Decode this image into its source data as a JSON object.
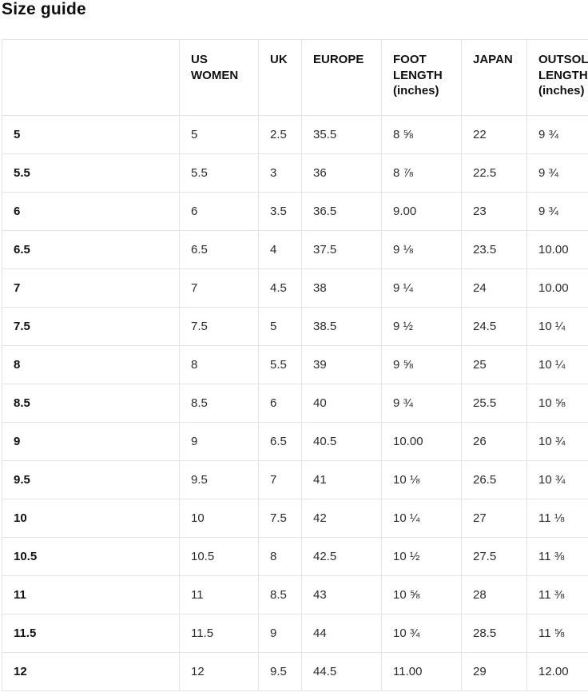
{
  "page": {
    "title": "Size guide"
  },
  "colors": {
    "border": "#e4e4e4",
    "heading_text": "#111111",
    "body_text": "#2b2b2b",
    "background": "#ffffff"
  },
  "table": {
    "columns": [
      {
        "key": "size",
        "label": ""
      },
      {
        "key": "us_women",
        "label": "US WOMEN"
      },
      {
        "key": "uk",
        "label": "UK"
      },
      {
        "key": "europe",
        "label": "EUROPE"
      },
      {
        "key": "foot_length",
        "label": "FOOT LENGTH (inches)"
      },
      {
        "key": "japan",
        "label": "JAPAN"
      },
      {
        "key": "outsole_length",
        "label": "OUTSOLE LENGTH (inches)"
      }
    ],
    "rows": [
      [
        "5",
        "5",
        "2.5",
        "35.5",
        "8 ⅝",
        "22",
        "9 ¾"
      ],
      [
        "5.5",
        "5.5",
        "3",
        "36",
        "8 ⅞",
        "22.5",
        "9 ¾"
      ],
      [
        "6",
        "6",
        "3.5",
        "36.5",
        "9.00",
        "23",
        "9 ¾"
      ],
      [
        "6.5",
        "6.5",
        "4",
        "37.5",
        "9 ⅛",
        "23.5",
        "10.00"
      ],
      [
        "7",
        "7",
        "4.5",
        "38",
        "9 ¼",
        "24",
        "10.00"
      ],
      [
        "7.5",
        "7.5",
        "5",
        "38.5",
        "9 ½",
        "24.5",
        "10 ¼"
      ],
      [
        "8",
        "8",
        "5.5",
        "39",
        "9 ⅝",
        "25",
        "10 ¼"
      ],
      [
        "8.5",
        "8.5",
        "6",
        "40",
        "9 ¾",
        "25.5",
        "10 ⅝"
      ],
      [
        "9",
        "9",
        "6.5",
        "40.5",
        "10.00",
        "26",
        "10 ¾"
      ],
      [
        "9.5",
        "9.5",
        "7",
        "41",
        "10 ⅛",
        "26.5",
        "10 ¾"
      ],
      [
        "10",
        "10",
        "7.5",
        "42",
        "10 ¼",
        "27",
        "11 ⅛"
      ],
      [
        "10.5",
        "10.5",
        "8",
        "42.5",
        "10 ½",
        "27.5",
        "11 ⅜"
      ],
      [
        "11",
        "11",
        "8.5",
        "43",
        "10 ⅝",
        "28",
        "11 ⅜"
      ],
      [
        "11.5",
        "11.5",
        "9",
        "44",
        "10 ¾",
        "28.5",
        "11 ⅝"
      ],
      [
        "12",
        "12",
        "9.5",
        "44.5",
        "11.00",
        "29",
        "12.00"
      ]
    ]
  }
}
